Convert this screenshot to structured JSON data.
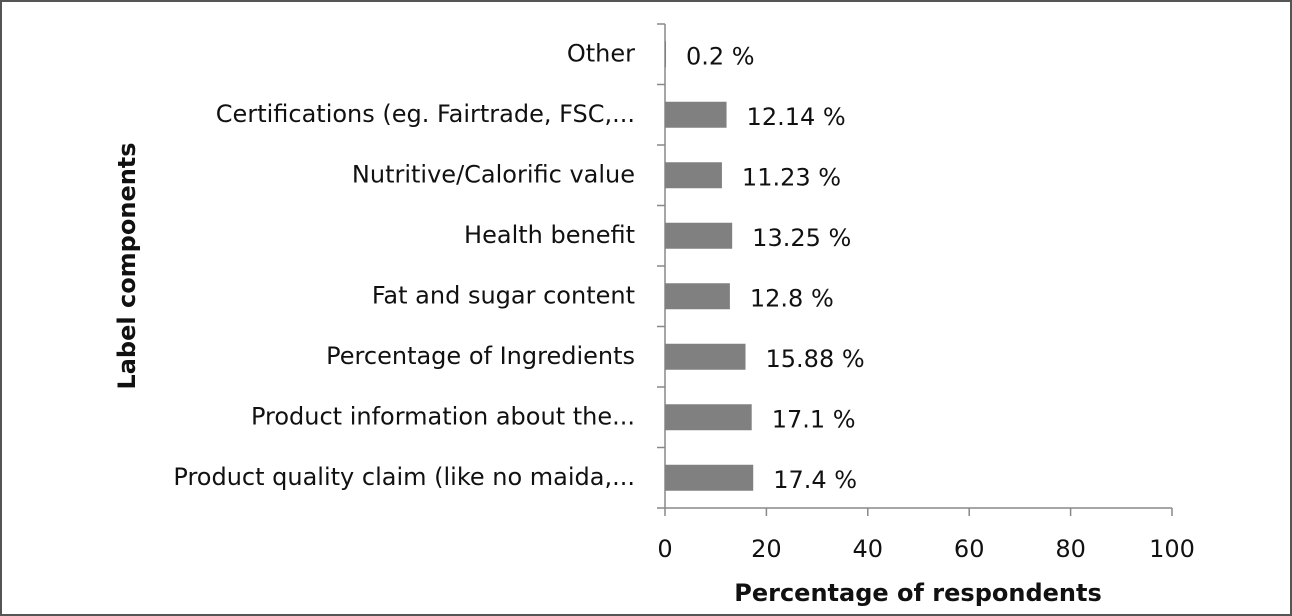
{
  "chart_data": {
    "type": "bar",
    "orientation": "horizontal",
    "categories": [
      "Other",
      "Certifications (eg. Fairtrade, FSC,...",
      "Nutritive/Calorific value",
      "Health benefit",
      "Fat and sugar content",
      "Percentage of Ingredients",
      "Product information about the...",
      "Product quality claim (like no maida,..."
    ],
    "values": [
      0.2,
      12.14,
      11.23,
      13.25,
      12.8,
      15.88,
      17.1,
      17.4
    ],
    "value_labels": [
      "0.2 %",
      "12.14 %",
      "11.23 %",
      "13.25 %",
      "12.8 %",
      "15.88 %",
      "17.1 %",
      "17.4 %"
    ],
    "color": "#808080",
    "xlim": [
      0,
      100
    ],
    "xticks": [
      0,
      20,
      40,
      60,
      80,
      100
    ],
    "xlabel": "Percentage of respondents",
    "ylabel": "Label components",
    "grid": false
  }
}
